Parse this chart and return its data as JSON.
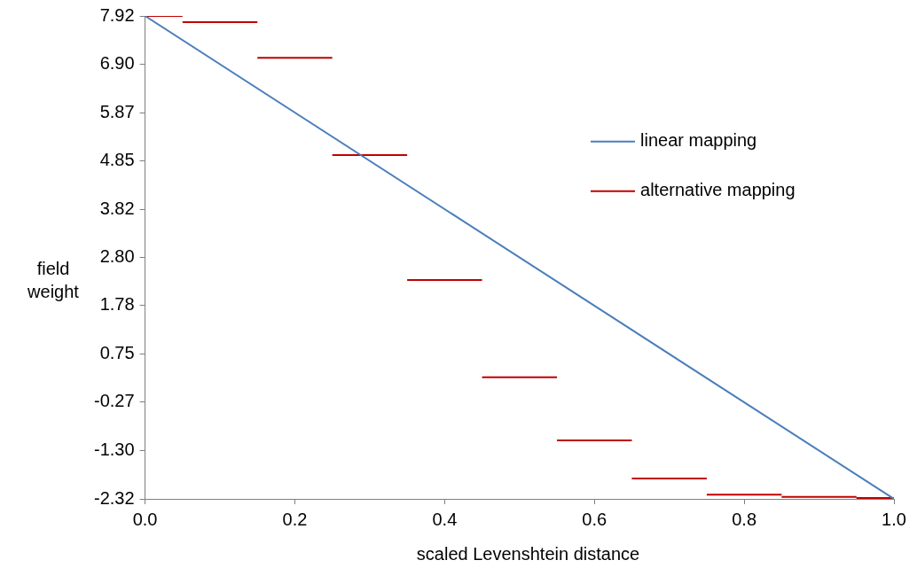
{
  "chart_data": {
    "type": "line",
    "xlabel": "scaled Levenshtein distance",
    "ylabel": "field weight",
    "xlim": [
      0,
      1
    ],
    "xticks": [
      {
        "value": 0,
        "label": "0.0"
      },
      {
        "value": 0.2,
        "label": "0.2"
      },
      {
        "value": 0.4,
        "label": "0.4"
      },
      {
        "value": 0.6,
        "label": "0.6"
      },
      {
        "value": 0.8,
        "label": "0.8"
      },
      {
        "value": 1,
        "label": "1.0"
      }
    ],
    "ylim": [
      -2.32,
      7.92
    ],
    "yticks": [
      -2.32,
      {
        "value": -1.3,
        "label": "-1.30"
      },
      -0.27,
      0.75,
      1.78,
      {
        "value": 2.8,
        "label": "2.80"
      },
      3.82,
      4.85,
      5.87,
      {
        "value": 6.9,
        "label": "6.90"
      },
      7.92
    ],
    "grid": false,
    "legend": "right",
    "marker": "none",
    "line_style": "solid",
    "series": [
      {
        "name": "linear mapping",
        "color": "#4a7ebb",
        "x": [
          0,
          1
        ],
        "values": [
          7.92,
          -2.32
        ]
      },
      {
        "name": "alternative mapping",
        "color": "#c00000",
        "x": [
          0,
          0.05,
          null,
          0.05,
          0.15,
          null,
          0.15,
          0.25,
          null,
          0.25,
          0.35,
          null,
          0.35,
          0.45,
          null,
          0.45,
          0.55,
          null,
          0.55,
          0.65,
          null,
          0.65,
          0.75,
          null,
          0.75,
          0.85,
          null,
          0.85,
          0.95,
          null,
          0.95,
          1
        ],
        "values": [
          7.92,
          7.92,
          null,
          7.79,
          7.79,
          null,
          7.03,
          7.03,
          null,
          4.97,
          4.97,
          null,
          2.32,
          2.32,
          null,
          0.26,
          0.26,
          null,
          -1.08,
          -1.08,
          null,
          -1.89,
          -1.89,
          null,
          -2.23,
          -2.23,
          null,
          -2.28,
          -2.28,
          null,
          -2.3,
          -2.3
        ]
      }
    ]
  }
}
